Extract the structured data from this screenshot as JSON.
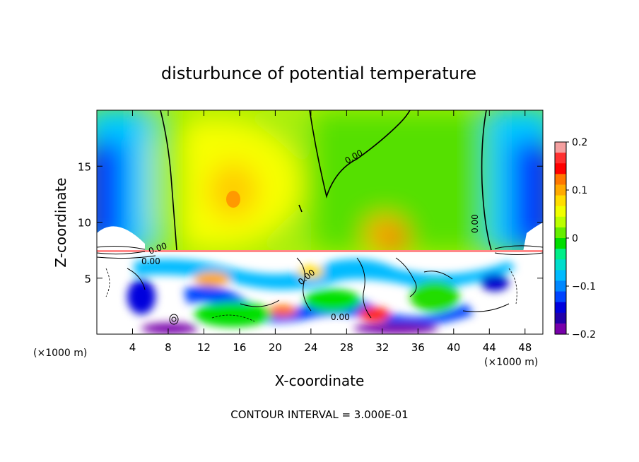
{
  "chart_data": {
    "type": "heatmap",
    "title": "disturbunce of potential temperature",
    "xlabel": "X-coordinate",
    "ylabel": "Z-coordinate",
    "x_unit": "(×1000 m)",
    "z_unit": "(×1000 m)",
    "footer": "CONTOUR INTERVAL = 3.000E-01",
    "xlim": [
      0,
      50
    ],
    "ylim": [
      0,
      20
    ],
    "x_ticks": [
      4,
      8,
      12,
      16,
      20,
      24,
      28,
      32,
      36,
      40,
      44,
      48
    ],
    "y_ticks": [
      5,
      10,
      15
    ],
    "colorbar": {
      "range": [
        -0.2,
        0.2
      ],
      "tick_labels": [
        "0.2",
        "0.1",
        "0",
        "−0.1",
        "−0.2"
      ],
      "tick_values": [
        0.2,
        0.1,
        0,
        -0.1,
        -0.2
      ],
      "colors": [
        "#f4a0a0",
        "#ff3030",
        "#ff0000",
        "#ff7700",
        "#ffaa00",
        "#ffdd00",
        "#f0ff00",
        "#bbff00",
        "#66ee00",
        "#00dd00",
        "#00ee88",
        "#00ddcc",
        "#00bbff",
        "#0088ff",
        "#0044ff",
        "#0000dd",
        "#2200aa",
        "#7700aa"
      ]
    },
    "contour_labels": [
      "0.00",
      "0.00",
      "0.00",
      "0.00",
      "0.00",
      "0.00"
    ],
    "grid": false
  }
}
